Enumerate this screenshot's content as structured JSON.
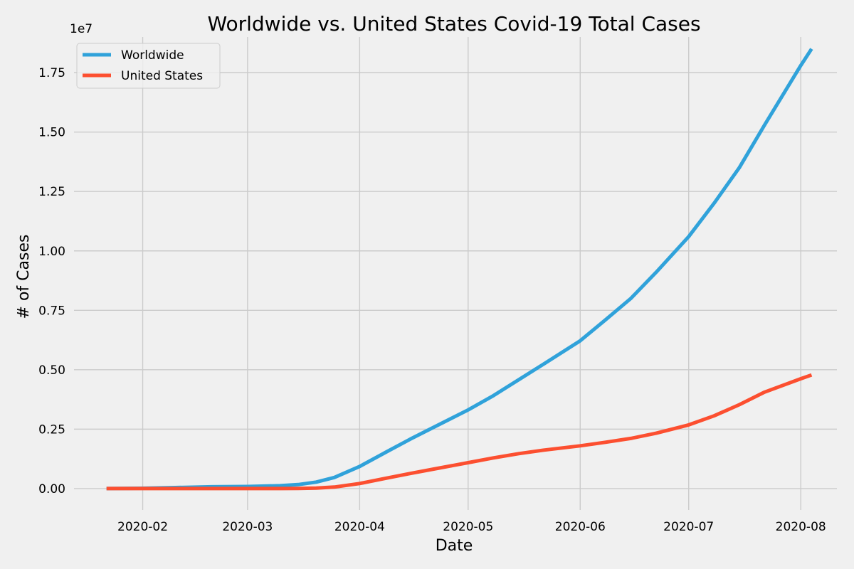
{
  "chart_data": {
    "type": "line",
    "title": "Worldwide vs. United States Covid-19 Total Cases",
    "xlabel": "Date",
    "ylabel": "# of Cases",
    "y_offset_label": "1e7",
    "x_axis_type": "date",
    "xlim": [
      "2020-01-13",
      "2020-08-11"
    ],
    "ylim": [
      -0.09,
      1.9
    ],
    "y_scale_factor": 10000000,
    "x_ticks": [
      "2020-02-01",
      "2020-03-01",
      "2020-04-01",
      "2020-05-01",
      "2020-06-01",
      "2020-07-01",
      "2020-08-01"
    ],
    "x_tick_labels": [
      "2020-02",
      "2020-03",
      "2020-04",
      "2020-05",
      "2020-06",
      "2020-07",
      "2020-08"
    ],
    "y_ticks": [
      0,
      0.25,
      0.5,
      0.75,
      1.0,
      1.25,
      1.5,
      1.75
    ],
    "y_tick_labels": [
      "0.00",
      "0.25",
      "0.50",
      "0.75",
      "1.00",
      "1.25",
      "1.50",
      "1.75"
    ],
    "grid": true,
    "legend_position": "top-left",
    "x": [
      "2020-01-22",
      "2020-02-01",
      "2020-02-10",
      "2020-02-20",
      "2020-03-01",
      "2020-03-10",
      "2020-03-15",
      "2020-03-20",
      "2020-03-25",
      "2020-04-01",
      "2020-04-08",
      "2020-04-15",
      "2020-04-22",
      "2020-05-01",
      "2020-05-08",
      "2020-05-15",
      "2020-05-22",
      "2020-06-01",
      "2020-06-08",
      "2020-06-15",
      "2020-06-22",
      "2020-07-01",
      "2020-07-08",
      "2020-07-15",
      "2020-07-22",
      "2020-08-01",
      "2020-08-04"
    ],
    "series": [
      {
        "name": "Worldwide",
        "color": "#30a2da",
        "values": [
          0.0,
          0.0012,
          0.0043,
          0.0076,
          0.0088,
          0.0119,
          0.0167,
          0.0272,
          0.0468,
          0.0932,
          0.151,
          0.208,
          0.262,
          0.331,
          0.391,
          0.458,
          0.525,
          0.622,
          0.71,
          0.8,
          0.91,
          1.06,
          1.2,
          1.35,
          1.53,
          1.78,
          1.85
        ]
      },
      {
        "name": "United States",
        "color": "#fc4f30",
        "values": [
          0.0,
          0.0,
          0.0,
          0.0,
          0.0,
          0.0001,
          0.0004,
          0.002,
          0.0064,
          0.0214,
          0.0426,
          0.0635,
          0.0835,
          0.109,
          0.129,
          0.147,
          0.162,
          0.18,
          0.195,
          0.211,
          0.233,
          0.268,
          0.306,
          0.353,
          0.406,
          0.462,
          0.478
        ]
      }
    ]
  }
}
